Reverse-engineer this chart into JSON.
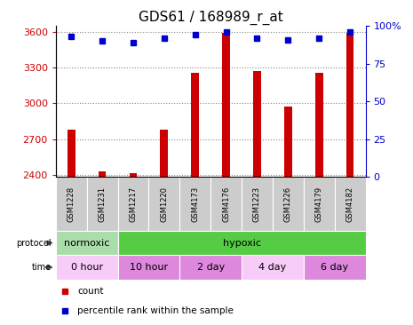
{
  "title": "GDS61 / 168989_r_at",
  "samples": [
    "GSM1228",
    "GSM1231",
    "GSM1217",
    "GSM1220",
    "GSM4173",
    "GSM4176",
    "GSM1223",
    "GSM1226",
    "GSM4179",
    "GSM4182"
  ],
  "counts": [
    2780,
    2430,
    2415,
    2780,
    3260,
    3590,
    3270,
    2975,
    3255,
    3590
  ],
  "percentiles": [
    93,
    90,
    89,
    92,
    94,
    96,
    92,
    91,
    92,
    96
  ],
  "ymin": 2380,
  "ymax": 3650,
  "yticks": [
    2400,
    2700,
    3000,
    3300,
    3600
  ],
  "pct_min": 0,
  "pct_max": 100,
  "pct_ticks": [
    0,
    25,
    50,
    75,
    100
  ],
  "pct_ticklabels": [
    "0",
    "25",
    "50",
    "75",
    "100%"
  ],
  "bar_color": "#cc0000",
  "dot_color": "#0000cc",
  "protocol_row": [
    {
      "label": "normoxic",
      "span": [
        0,
        2
      ],
      "color": "#aaddaa"
    },
    {
      "label": "hypoxic",
      "span": [
        2,
        10
      ],
      "color": "#55cc44"
    }
  ],
  "time_row": [
    {
      "label": "0 hour",
      "span": [
        0,
        2
      ],
      "color": "#f8ccf8"
    },
    {
      "label": "10 hour",
      "span": [
        2,
        4
      ],
      "color": "#dd88dd"
    },
    {
      "label": "2 day",
      "span": [
        4,
        6
      ],
      "color": "#dd88dd"
    },
    {
      "label": "4 day",
      "span": [
        6,
        8
      ],
      "color": "#f8ccf8"
    },
    {
      "label": "6 day",
      "span": [
        8,
        10
      ],
      "color": "#dd88dd"
    }
  ],
  "grid_color": "#888888",
  "tick_color_left": "#cc0000",
  "tick_color_right": "#0000cc",
  "sample_bg_color": "#cccccc",
  "label_fontsize": 8,
  "title_fontsize": 11,
  "bar_width": 0.25
}
